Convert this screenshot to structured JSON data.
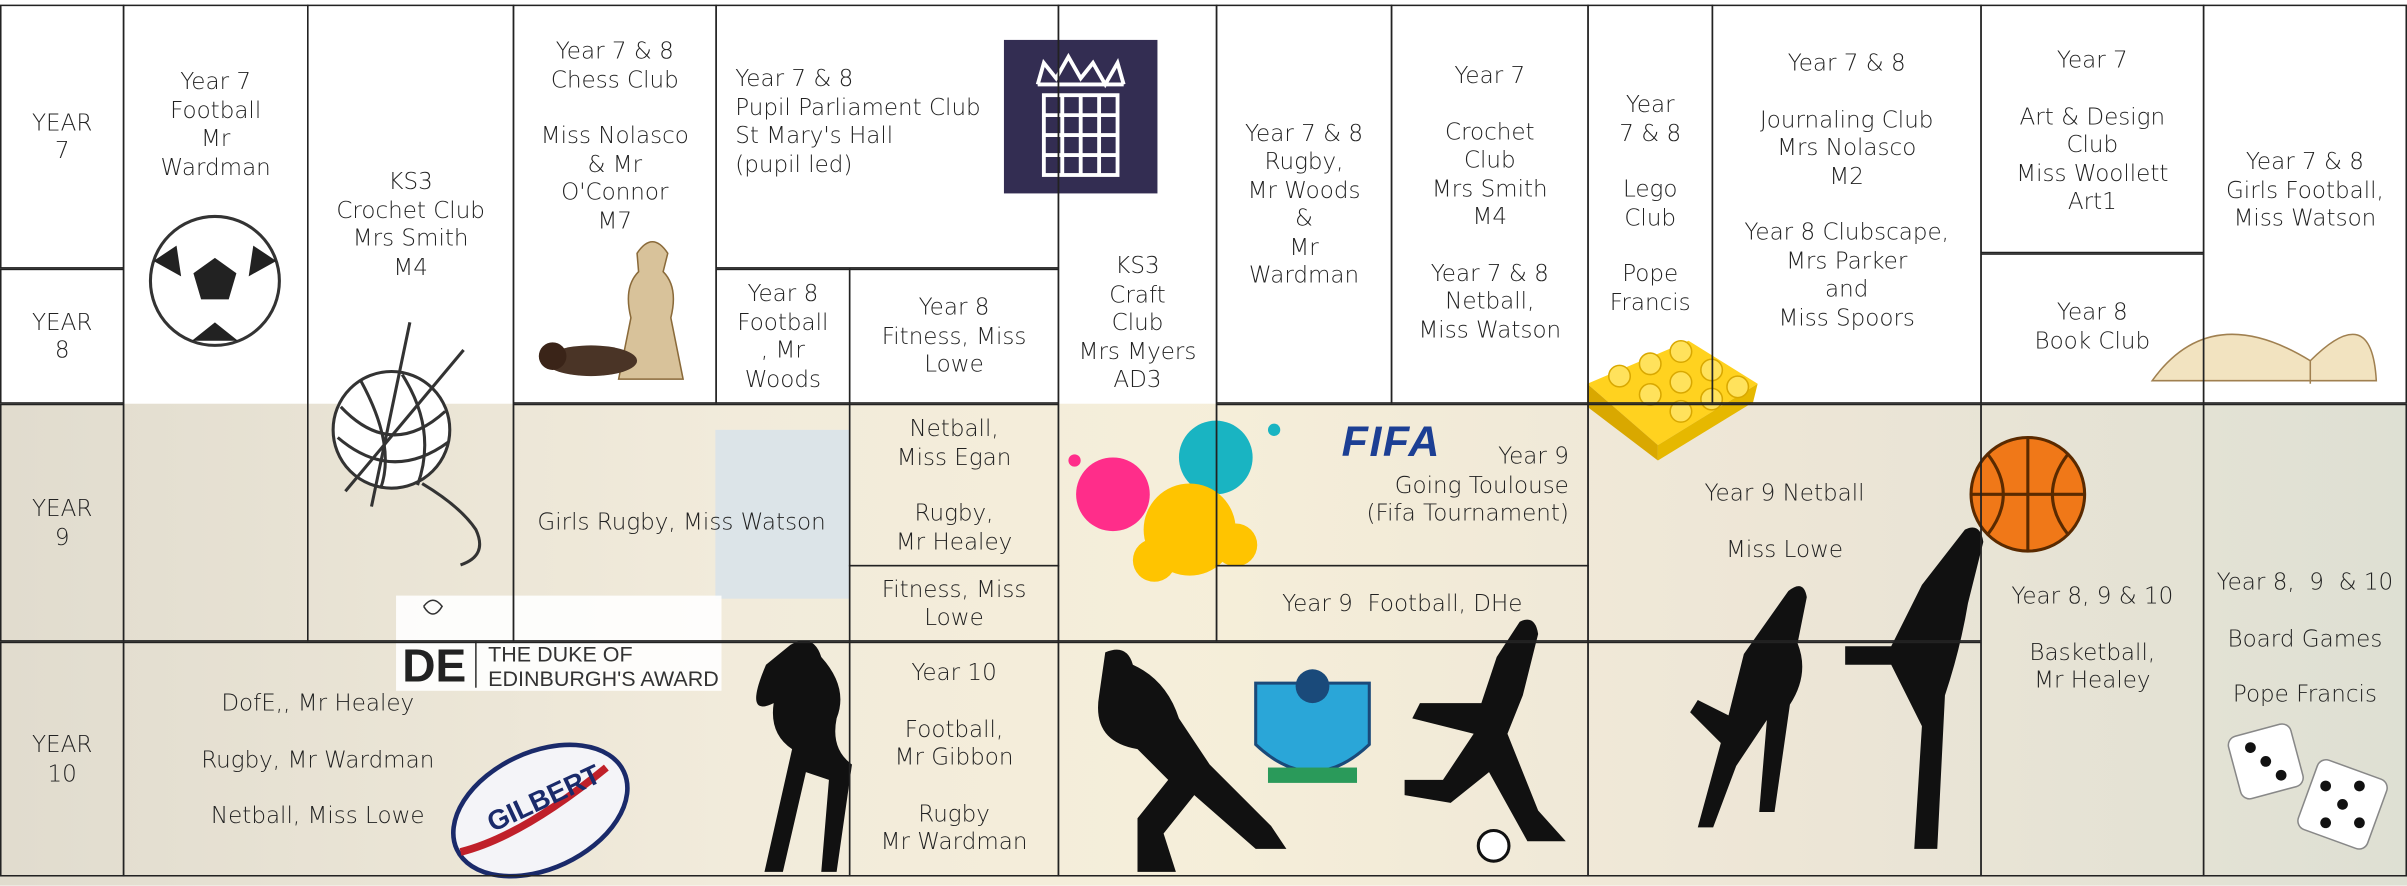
{
  "rows": [
    "YEAR 7",
    "YEAR 8",
    "YEAR 9",
    "YEAR 10"
  ],
  "cells": [
    {
      "groups": [
        [
          "Year 7",
          "Football",
          "Mr",
          "Wardman"
        ]
      ]
    },
    {
      "groups": [
        [
          "KS3",
          "Crochet Club",
          "Mrs Smith",
          "M4"
        ]
      ]
    },
    {
      "groups": [
        [
          "Year 7 & 8",
          "Chess Club"
        ],
        [
          "Miss Nolasco",
          "& Mr",
          "O'Connor",
          "M7"
        ]
      ]
    },
    {
      "groups": [
        [
          "Year 7 & 8",
          "Pupil Parliament Club",
          "St Mary's Hall",
          "(pupil led)"
        ]
      ]
    },
    {
      "groups": [
        [
          "Year 8",
          "Football",
          ", Mr",
          "Woods"
        ]
      ]
    },
    {
      "groups": [
        [
          "Year 8",
          "Fitness, Miss",
          "Lowe"
        ]
      ]
    },
    {
      "groups": [
        [
          "Girls Rugby, Miss Watson"
        ]
      ]
    },
    {
      "groups": [
        [
          "Netball,",
          "Miss Egan"
        ],
        [
          "Rugby,",
          "Mr Healey"
        ]
      ]
    },
    {
      "groups": [
        [
          "Fitness, Miss",
          "Lowe"
        ]
      ]
    },
    {
      "groups": [
        [
          "KS3",
          "Craft",
          "Club",
          "Mrs Myers",
          "AD3"
        ]
      ]
    },
    {
      "groups": [
        [
          "Year 7 & 8",
          "Rugby,",
          "Mr Woods",
          "&",
          "Mr",
          "Wardman"
        ]
      ]
    },
    {
      "groups": [
        [
          "Year 7"
        ],
        [
          "Crochet",
          "Club",
          "Mrs Smith",
          "M4"
        ],
        [
          "Year 7 & 8",
          "Netball,",
          "Miss Watson"
        ]
      ]
    },
    {
      "groups": [
        [
          "Year 9",
          "Going Toulouse",
          "(Fifa Tournament)"
        ]
      ]
    },
    {
      "groups": [
        [
          "Year 9  Football, DHe"
        ]
      ]
    },
    {
      "groups": [
        [
          "Year",
          "7 & 8"
        ],
        [
          "Lego",
          "Club"
        ],
        [
          "Pope",
          "Francis"
        ]
      ]
    },
    {
      "groups": [
        [
          "Year 7 & 8"
        ],
        [
          "Journaling Club",
          "Mrs Nolasco",
          "M2"
        ],
        [
          "Year 8 Clubscape,",
          "Mrs Parker",
          "and",
          "Miss Spoors"
        ]
      ]
    },
    {
      "groups": [
        [
          "Year 9 Netball"
        ],
        [
          "Miss Lowe"
        ]
      ]
    },
    {
      "groups": [
        [
          "Year 7"
        ],
        [
          "Art & Design",
          "Club",
          "Miss Woollett",
          "Art1"
        ]
      ]
    },
    {
      "groups": [
        [
          "Year 8",
          "Book Club"
        ]
      ]
    },
    {
      "groups": [
        [
          "Year 7 & 8",
          "Girls Football,",
          "Miss Watson"
        ]
      ]
    },
    {
      "groups": [
        [
          "Year 8, 9 & 10"
        ],
        [
          "Basketball,",
          "Mr Healey"
        ]
      ]
    },
    {
      "groups": [
        [
          "Year 8,  9  & 10"
        ],
        [
          "Board Games"
        ],
        [
          "Pope Francis"
        ]
      ]
    },
    {
      "groups": [
        [
          "DofE,, Mr Healey"
        ],
        [
          "Rugby, Mr Wardman"
        ],
        [
          "Netball, Miss Lowe"
        ]
      ]
    },
    {
      "groups": [
        [
          "Year 10"
        ],
        [
          "Football,",
          "Mr Gibbon"
        ],
        [
          "Rugby",
          "Mr Wardman"
        ]
      ]
    }
  ],
  "logos": {
    "fifa": "FIFA",
    "dofe_line1": "THE DUKE OF",
    "dofe_line2": "EDINBURGH'S AWARD",
    "dofe_mark": "DE",
    "rugby_ball": "GILBERT"
  }
}
